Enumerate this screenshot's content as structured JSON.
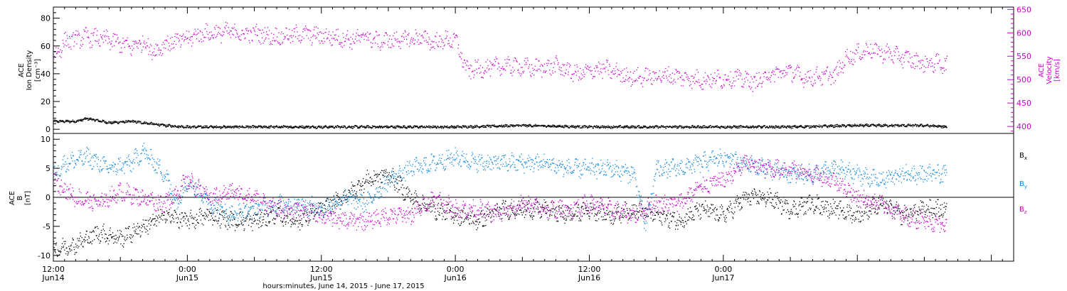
{
  "figure_footer": "hours:minutes, June 14, 2015 - June 17, 2015",
  "chart_data": [
    {
      "type": "scatter",
      "panel": "top",
      "left_axis": {
        "label_lines": [
          "ACE",
          "Ion Density",
          "[cm⁻³]"
        ],
        "range": [
          -3,
          88
        ],
        "ticks": [
          0,
          20,
          40,
          60,
          80
        ],
        "color": "#000000"
      },
      "right_axis": {
        "label_lines": [
          "ACE",
          "Velocity",
          "[km/s]"
        ],
        "range": [
          385,
          655
        ],
        "ticks": [
          400,
          450,
          500,
          550,
          600,
          650
        ],
        "color": "#cc00cc"
      },
      "x_range_hours": [
        0,
        86
      ],
      "series": [
        {
          "axis": "left",
          "color": "#000000",
          "anchors_hours": [
            0,
            2,
            3,
            5,
            7,
            10,
            12,
            18,
            24,
            30,
            36,
            42,
            48,
            54,
            60,
            66,
            72,
            78,
            80
          ],
          "values": [
            6,
            6,
            8,
            5,
            6,
            3,
            2,
            2,
            2,
            2,
            2,
            3,
            2,
            2,
            2,
            2,
            3,
            3,
            2
          ]
        },
        {
          "axis": "right",
          "color": "#cc00cc",
          "anchors_hours": [
            0,
            1,
            3,
            5,
            7,
            8,
            9,
            10,
            12,
            13,
            16,
            17,
            18,
            20,
            22,
            25,
            27,
            28,
            29,
            31,
            33,
            34,
            35,
            36,
            37,
            40,
            41,
            43,
            45,
            47,
            49,
            52,
            55,
            58,
            61,
            63,
            64,
            66,
            67,
            70,
            71,
            73,
            75,
            78,
            80
          ],
          "values": [
            548,
            582,
            592,
            585,
            570,
            583,
            560,
            578,
            588,
            598,
            603,
            597,
            600,
            592,
            598,
            592,
            586,
            595,
            582,
            586,
            590,
            580,
            585,
            585,
            520,
            530,
            530,
            525,
            530,
            512,
            525,
            505,
            510,
            500,
            505,
            495,
            510,
            520,
            505,
            510,
            548,
            565,
            555,
            535,
            535
          ]
        }
      ]
    },
    {
      "type": "scatter",
      "panel": "bottom",
      "left_axis": {
        "label_lines": [
          "ACE",
          "B",
          "[nT]"
        ],
        "range": [
          -11,
          11
        ],
        "ticks": [
          -10,
          -5,
          0,
          5,
          10
        ],
        "color": "#000000"
      },
      "x_range_hours": [
        0,
        86
      ],
      "x_ticks": [
        {
          "hour": 0,
          "lines": [
            "12:00",
            "Jun14"
          ]
        },
        {
          "hour": 12,
          "lines": [
            "0:00",
            "Jun15"
          ]
        },
        {
          "hour": 24,
          "lines": [
            "12:00",
            "Jun15"
          ]
        },
        {
          "hour": 36,
          "lines": [
            "0:00",
            "Jun16"
          ]
        },
        {
          "hour": 48,
          "lines": [
            "12:00",
            "Jun16"
          ]
        },
        {
          "hour": 60,
          "lines": [
            "0:00",
            "Jun17"
          ]
        }
      ],
      "zero_line": true,
      "series": [
        {
          "name": "Bx",
          "name_main": "B",
          "name_sub": "x",
          "color": "#000000",
          "anchors_hours": [
            0,
            2,
            4,
            6,
            8,
            10,
            12,
            14,
            16,
            18,
            20,
            22,
            24,
            26,
            28,
            30,
            32,
            34,
            36,
            38,
            40,
            42,
            44,
            46,
            48,
            50,
            52,
            54,
            56,
            58,
            60,
            62,
            64,
            66,
            68,
            70,
            72,
            74,
            76,
            78,
            80
          ],
          "values": [
            -9,
            -8,
            -6,
            -7,
            -5,
            -3,
            -4,
            -3,
            -4,
            -4,
            -3,
            -4,
            -2,
            0,
            3,
            4,
            0,
            -2,
            -3,
            -4,
            -2,
            -2,
            -2,
            -3,
            -2,
            -3,
            -2,
            -3,
            -4,
            -2,
            -3,
            0,
            0,
            -2,
            -1,
            -2,
            -3,
            -1,
            -3,
            -2,
            -2
          ]
        },
        {
          "name": "By",
          "name_main": "B",
          "name_sub": "y",
          "color": "#1188dd",
          "anchors_hours": [
            0,
            1,
            3,
            5,
            7,
            8,
            9,
            10,
            11,
            12,
            14,
            16,
            18,
            20,
            22,
            24,
            26,
            28,
            30,
            32,
            34,
            36,
            38,
            40,
            42,
            44,
            46,
            48,
            50,
            52,
            53,
            54,
            56,
            58,
            60,
            62,
            64,
            66,
            68,
            70,
            72,
            74,
            76,
            78,
            80
          ],
          "values": [
            4,
            6,
            7,
            5,
            6,
            8,
            6,
            4,
            -1,
            3,
            -1,
            -3,
            -2,
            -1,
            -1,
            -2,
            0,
            -1,
            3,
            5,
            6,
            7,
            6,
            6,
            6,
            6,
            5,
            5,
            5,
            4,
            -5,
            5,
            5,
            6,
            7,
            6,
            5,
            4,
            4,
            5,
            4,
            3,
            4,
            4,
            4
          ]
        },
        {
          "name": "Bz",
          "name_main": "B",
          "name_sub": "z",
          "color": "#cc00cc",
          "anchors_hours": [
            0,
            2,
            4,
            6,
            8,
            10,
            12,
            14,
            16,
            18,
            20,
            22,
            24,
            26,
            28,
            30,
            32,
            34,
            36,
            38,
            40,
            42,
            44,
            46,
            48,
            50,
            52,
            54,
            56,
            58,
            60,
            62,
            64,
            66,
            68,
            70,
            72,
            74,
            76,
            78,
            80
          ],
          "values": [
            3,
            0,
            -1,
            1,
            0,
            -1,
            3,
            0,
            1,
            0,
            -2,
            -2,
            -3,
            -4,
            -4,
            -3,
            -3,
            0,
            -2,
            -2,
            -3,
            -1,
            -2,
            -2,
            -1,
            -2,
            -3,
            -1,
            -1,
            2,
            3,
            6,
            5,
            5,
            4,
            3,
            0,
            -1,
            -3,
            -4,
            -5
          ]
        }
      ]
    }
  ]
}
